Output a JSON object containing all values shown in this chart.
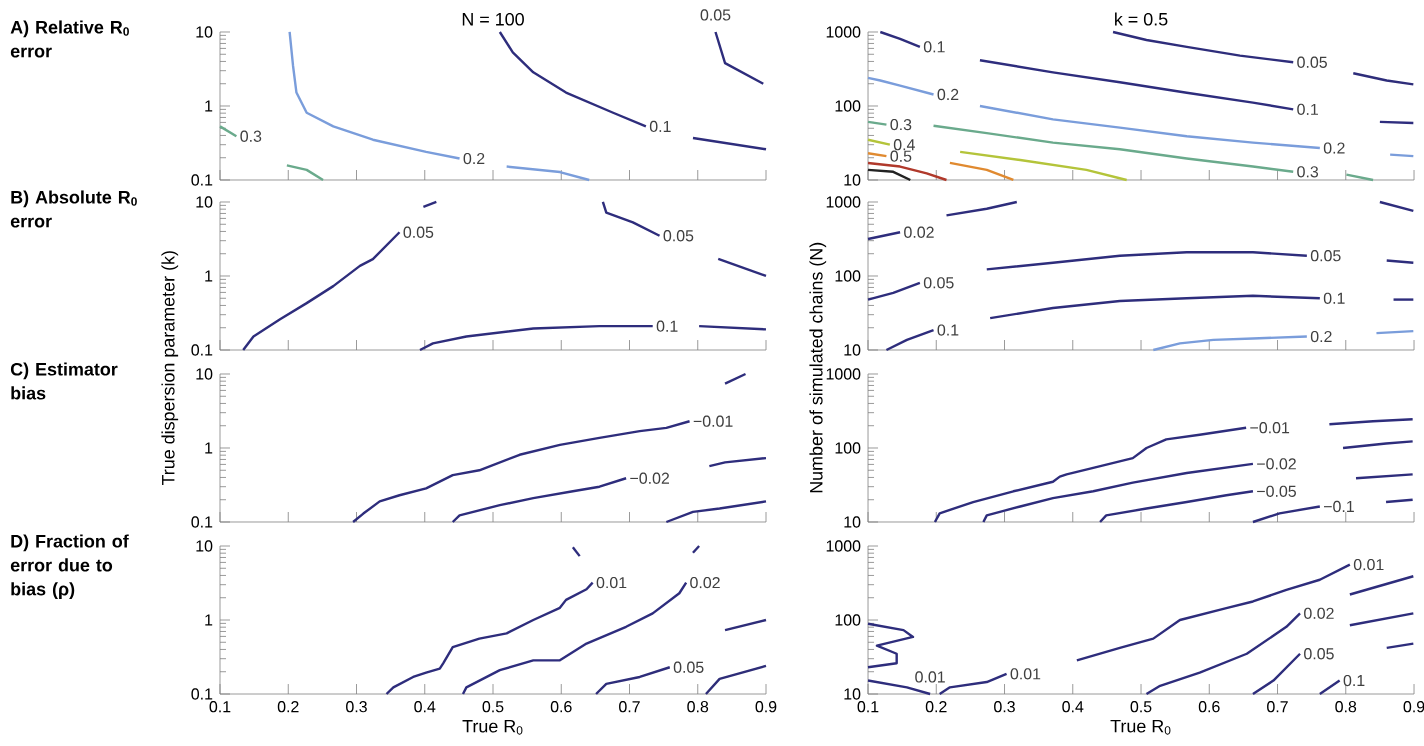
{
  "chart_data": [
    {
      "type": "line",
      "title": "A) Relative R$_{0}$ error",
      "xlim": [
        0.1,
        0.9
      ],
      "ylim": [
        0.1,
        10
      ],
      "xticks": [
        0.1,
        0.2,
        0.3,
        0.4,
        0.5,
        0.6,
        0.7,
        0.8,
        0.9
      ],
      "yticks": [
        0.1,
        1,
        10
      ],
      "log": "y",
      "tick_labels": "y",
      "series": [
        {
          "name": "0.3",
          "color": "#6aaa8c",
          "x": [
            0.1,
            0.124
          ],
          "values": [
            0.53,
            0.39
          ]
        },
        {
          "color": "#6aaa8c",
          "x": [
            0.198,
            0.227,
            0.251
          ],
          "values": [
            0.158,
            0.137,
            0.1
          ]
        },
        {
          "name": "0.2",
          "color": "#7a9ddb",
          "x": [
            0.202,
            0.207,
            0.212,
            0.227,
            0.266,
            0.324,
            0.402,
            0.451
          ],
          "values": [
            10,
            3.5,
            1.52,
            0.81,
            0.53,
            0.35,
            0.24,
            0.195
          ]
        },
        {
          "color": "#7a9ddb",
          "x": [
            0.52,
            0.598,
            0.641
          ],
          "values": [
            0.152,
            0.128,
            0.1
          ]
        },
        {
          "name": "0.1",
          "color": "#2e2d7c",
          "x": [
            0.51,
            0.529,
            0.559,
            0.607,
            0.676,
            0.724
          ],
          "values": [
            10,
            5.3,
            2.85,
            1.52,
            0.81,
            0.53
          ]
        },
        {
          "color": "#2e2d7c",
          "x": [
            0.793,
            0.9
          ],
          "values": [
            0.37,
            0.26
          ]
        },
        {
          "name": "0.05",
          "color": "#2e2d7c",
          "x": [
            0.896,
            0.84,
            0.826
          ],
          "values": [
            2.0,
            3.8,
            10
          ]
        }
      ],
      "annotations": [
        "N = 100"
      ]
    },
    {
      "type": "line",
      "xlim": [
        0.1,
        0.9
      ],
      "ylim": [
        10,
        1000
      ],
      "xticks": [
        0.1,
        0.2,
        0.3,
        0.4,
        0.5,
        0.6,
        0.7,
        0.8,
        0.9
      ],
      "yticks": [
        10,
        100,
        1000
      ],
      "log": "y",
      "tick_labels": "y",
      "series": [
        {
          "name": "0.1",
          "color": "#2e2d7c",
          "x": [
            0.118,
            0.147,
            0.176
          ],
          "values": [
            1000,
            810,
            630
          ]
        },
        {
          "name": "0.1",
          "color": "#2e2d7d",
          "x": [
            0.264,
            0.371,
            0.469,
            0.567,
            0.664,
            0.723
          ],
          "values": [
            415,
            285,
            209,
            151,
            111,
            90
          ]
        },
        {
          "color": "#2e2d7e",
          "x": [
            0.85,
            0.899
          ],
          "values": [
            61,
            59
          ]
        },
        {
          "name": "0.05",
          "color": "#2e2d7b",
          "x": [
            0.459,
            0.508,
            0.567,
            0.645,
            0.723
          ],
          "values": [
            1000,
            780,
            630,
            480,
            390
          ]
        },
        {
          "color": "#2e2d7a",
          "x": [
            0.811,
            0.86,
            0.899
          ],
          "values": [
            277,
            221,
            196
          ]
        },
        {
          "name": "0.2",
          "color": "#7a9ddb",
          "x": [
            0.1,
            0.118,
            0.147,
            0.196
          ],
          "values": [
            240,
            221,
            188,
            143
          ]
        },
        {
          "name": "0.2",
          "color": "#7a9ddb",
          "x": [
            0.264,
            0.371,
            0.469,
            0.567,
            0.664,
            0.762
          ],
          "values": [
            100,
            66,
            51,
            39,
            32,
            27
          ]
        },
        {
          "color": "#7a9ddb",
          "x": [
            0.865,
            0.899
          ],
          "values": [
            22,
            21
          ]
        },
        {
          "name": "0.3",
          "color": "#6aaa8c",
          "x": [
            0.1,
            0.127
          ],
          "values": [
            61,
            56
          ]
        },
        {
          "name": "0.3",
          "color": "#6aaa8c",
          "x": [
            0.196,
            0.274,
            0.371,
            0.469,
            0.567,
            0.664,
            0.723
          ],
          "values": [
            54,
            43,
            32,
            26,
            19.5,
            15.2,
            12.9
          ]
        },
        {
          "color": "#6aaa8c",
          "x": [
            0.801,
            0.84
          ],
          "values": [
            11.8,
            10
          ]
        },
        {
          "name": "0.4",
          "color": "#b4c43a",
          "x": [
            0.1,
            0.132
          ],
          "values": [
            35,
            30
          ]
        },
        {
          "color": "#b4c43a",
          "x": [
            0.235,
            0.323,
            0.42,
            0.479
          ],
          "values": [
            24,
            18.6,
            13.7,
            10
          ]
        },
        {
          "name": "0.5",
          "color": "#e08a30",
          "x": [
            0.1,
            0.127
          ],
          "values": [
            23,
            21
          ]
        },
        {
          "color": "#e08a30",
          "x": [
            0.22,
            0.274,
            0.313
          ],
          "values": [
            17,
            13.7,
            10
          ]
        },
        {
          "color": "#b0392b",
          "x": [
            0.1,
            0.147,
            0.186,
            0.215
          ],
          "values": [
            17,
            15.2,
            12.3,
            10
          ]
        },
        {
          "color": "#222222",
          "x": [
            0.1,
            0.137,
            0.162
          ],
          "values": [
            13.7,
            12.9,
            10
          ]
        }
      ],
      "annotations": [
        "k = 0.5"
      ]
    },
    {
      "type": "line",
      "title": "B) Absolute R$_{0}$ error",
      "ylabel": "True dispersion parameter (k)",
      "xlim": [
        0.1,
        0.9
      ],
      "ylim": [
        0.1,
        10
      ],
      "xticks": [
        0.1,
        0.2,
        0.3,
        0.4,
        0.5,
        0.6,
        0.7,
        0.8,
        0.9
      ],
      "yticks": [
        0.1,
        1,
        10
      ],
      "log": "y",
      "tick_labels": "y",
      "series": [
        {
          "name": "0.05",
          "color": "#2e2d7c",
          "x": [
            0.134,
            0.149,
            0.188,
            0.227,
            0.266,
            0.305,
            0.324,
            0.363
          ],
          "values": [
            0.1,
            0.152,
            0.26,
            0.43,
            0.73,
            1.37,
            1.69,
            3.9
          ]
        },
        {
          "color": "#2e2d7c",
          "x": [
            0.398,
            0.417
          ],
          "values": [
            8.6,
            10
          ]
        },
        {
          "name": "0.05",
          "color": "#2e2d7c",
          "x": [
            0.661,
            0.666,
            0.705,
            0.744
          ],
          "values": [
            10,
            7.2,
            5.3,
            3.5
          ]
        },
        {
          "color": "#2e2d7c",
          "x": [
            0.83,
            0.9
          ],
          "values": [
            1.7,
            1.0
          ]
        },
        {
          "name": "0.1",
          "color": "#2e2d7c",
          "x": [
            0.393,
            0.412,
            0.461,
            0.559,
            0.656,
            0.734
          ],
          "values": [
            0.1,
            0.123,
            0.152,
            0.195,
            0.21,
            0.21
          ]
        },
        {
          "color": "#2e2d7c",
          "x": [
            0.802,
            0.9
          ],
          "values": [
            0.21,
            0.19
          ]
        }
      ]
    },
    {
      "type": "line",
      "ylabel": "Number of simulated chains (N)",
      "xlim": [
        0.1,
        0.9
      ],
      "ylim": [
        10,
        1000
      ],
      "xticks": [
        0.1,
        0.2,
        0.3,
        0.4,
        0.5,
        0.6,
        0.7,
        0.8,
        0.9
      ],
      "yticks": [
        10,
        100,
        1000
      ],
      "log": "y",
      "tick_labels": "y",
      "series": [
        {
          "name": "0.02",
          "color": "#2e2d7c",
          "x": [
            0.1,
            0.147
          ],
          "values": [
            316,
            390
          ]
        },
        {
          "color": "#2e2d7c",
          "x": [
            0.215,
            0.274,
            0.318
          ],
          "values": [
            660,
            810,
            1000
          ]
        },
        {
          "color": "#2e2d7c",
          "x": [
            0.85,
            0.899
          ],
          "values": [
            1000,
            760
          ]
        },
        {
          "name": "0.05",
          "color": "#2e2d7c",
          "x": [
            0.1,
            0.137,
            0.176
          ],
          "values": [
            48,
            59,
            81
          ]
        },
        {
          "name": "0.05",
          "color": "#2e2d7c",
          "x": [
            0.274,
            0.371,
            0.469,
            0.567,
            0.664,
            0.743
          ],
          "values": [
            123,
            151,
            188,
            209,
            209,
            188
          ]
        },
        {
          "color": "#2e2d7c",
          "x": [
            0.86,
            0.899
          ],
          "values": [
            162,
            151
          ]
        },
        {
          "name": "0.1",
          "color": "#2e2d7c",
          "x": [
            0.127,
            0.157,
            0.196
          ],
          "values": [
            10,
            13.7,
            18.6
          ]
        },
        {
          "name": "0.1",
          "color": "#2e2d7c",
          "x": [
            0.279,
            0.371,
            0.469,
            0.567,
            0.664,
            0.762
          ],
          "values": [
            27,
            37,
            46,
            50,
            54,
            50
          ]
        },
        {
          "color": "#2e2d7c",
          "x": [
            0.87,
            0.899
          ],
          "values": [
            48,
            48
          ]
        },
        {
          "name": "0.2",
          "color": "#7a9ddb",
          "x": [
            0.518,
            0.557,
            0.606,
            0.664,
            0.743
          ],
          "values": [
            10,
            12.3,
            13.7,
            14.3,
            15.2
          ]
        },
        {
          "color": "#7a9ddb",
          "x": [
            0.845,
            0.899
          ],
          "values": [
            16.9,
            18
          ]
        }
      ]
    },
    {
      "type": "line",
      "title": "C) Estimator bias",
      "xlim": [
        0.1,
        0.9
      ],
      "ylim": [
        0.1,
        10
      ],
      "xticks": [
        0.1,
        0.2,
        0.3,
        0.4,
        0.5,
        0.6,
        0.7,
        0.8,
        0.9
      ],
      "yticks": [
        0.1,
        1,
        10
      ],
      "log": "y",
      "tick_labels": "y",
      "series": [
        {
          "name": "−0.01",
          "color": "#2e2d7c",
          "x": [
            0.295,
            0.31,
            0.334,
            0.363,
            0.402,
            0.441,
            0.48,
            0.539,
            0.598,
            0.656,
            0.715,
            0.754,
            0.788
          ],
          "values": [
            0.1,
            0.13,
            0.19,
            0.23,
            0.285,
            0.43,
            0.5,
            0.81,
            1.1,
            1.37,
            1.69,
            1.87,
            2.3
          ]
        },
        {
          "color": "#2e2d7c",
          "x": [
            0.84,
            0.87
          ],
          "values": [
            7.4,
            10
          ]
        },
        {
          "name": "−0.02",
          "color": "#2e2d7c",
          "x": [
            0.441,
            0.451,
            0.51,
            0.559,
            0.617,
            0.656,
            0.695
          ],
          "values": [
            0.1,
            0.123,
            0.169,
            0.21,
            0.26,
            0.3,
            0.39
          ]
        },
        {
          "color": "#2e2d7c",
          "x": [
            0.817,
            0.84,
            0.9
          ],
          "values": [
            0.57,
            0.64,
            0.73
          ]
        },
        {
          "color": "#2e2d7c",
          "x": [
            0.754,
            0.793,
            0.832,
            0.9
          ],
          "values": [
            0.1,
            0.137,
            0.152,
            0.19
          ]
        }
      ]
    },
    {
      "type": "line",
      "xlim": [
        0.1,
        0.9
      ],
      "ylim": [
        10,
        1000
      ],
      "xticks": [
        0.1,
        0.2,
        0.3,
        0.4,
        0.5,
        0.6,
        0.7,
        0.8,
        0.9
      ],
      "yticks": [
        10,
        100,
        1000
      ],
      "log": "y",
      "tick_labels": "y",
      "series": [
        {
          "name": "−0.01",
          "color": "#2e2d7c",
          "x": [
            0.198,
            0.205,
            0.254,
            0.313,
            0.371,
            0.381,
            0.391,
            0.43,
            0.488,
            0.508,
            0.537,
            0.586,
            0.654
          ],
          "values": [
            10,
            13.1,
            18.6,
            26,
            35,
            41,
            44,
            54,
            73,
            100,
            131,
            151,
            188
          ]
        },
        {
          "color": "#2e2d7c",
          "x": [
            0.776,
            0.84,
            0.898
          ],
          "values": [
            209,
            230,
            245
          ]
        },
        {
          "name": "−0.02",
          "color": "#2e2d7c",
          "x": [
            0.269,
            0.274,
            0.323,
            0.371,
            0.43,
            0.488,
            0.567,
            0.664
          ],
          "values": [
            10,
            12.3,
            16.2,
            21,
            26,
            34,
            46,
            61
          ]
        },
        {
          "color": "#2e2d7c",
          "x": [
            0.796,
            0.859,
            0.898
          ],
          "values": [
            100,
            115,
            123
          ]
        },
        {
          "name": "−0.05",
          "color": "#2e2d7c",
          "x": [
            0.44,
            0.449,
            0.508,
            0.567,
            0.625,
            0.664
          ],
          "values": [
            10,
            12.3,
            15.2,
            18.6,
            23,
            26
          ]
        },
        {
          "color": "#2e2d7c",
          "x": [
            0.815,
            0.898
          ],
          "values": [
            39,
            44
          ]
        },
        {
          "name": "−0.1",
          "color": "#2e2d7c",
          "x": [
            0.664,
            0.703,
            0.762
          ],
          "values": [
            10,
            13.1,
            16.2
          ]
        },
        {
          "color": "#2e2d7c",
          "x": [
            0.859,
            0.898
          ],
          "values": [
            18.6,
            20
          ]
        }
      ]
    },
    {
      "type": "line",
      "title": "D) Fraction of error due to bias (ρ)",
      "xlabel": "True R$_{0}$",
      "xlim": [
        0.1,
        0.9
      ],
      "ylim": [
        0.1,
        10
      ],
      "xticks": [
        0.1,
        0.2,
        0.3,
        0.4,
        0.5,
        0.6,
        0.7,
        0.8,
        0.9
      ],
      "yticks": [
        0.1,
        1,
        10
      ],
      "log": "y",
      "series": [
        {
          "name": "0.01",
          "color": "#2e2d7c",
          "x": [
            0.344,
            0.354,
            0.383,
            0.402,
            0.422,
            0.427,
            0.441,
            0.48,
            0.52,
            0.559,
            0.598,
            0.607,
            0.637,
            0.646
          ],
          "values": [
            0.1,
            0.123,
            0.17,
            0.195,
            0.22,
            0.26,
            0.43,
            0.56,
            0.66,
            1.0,
            1.46,
            1.87,
            2.6,
            3.2
          ]
        },
        {
          "color": "#2e2d7d",
          "x": [
            0.617,
            0.627
          ],
          "values": [
            9.6,
            7.3
          ]
        },
        {
          "name": "0.02",
          "color": "#2e2d7e",
          "x": [
            0.456,
            0.461,
            0.51,
            0.559,
            0.598,
            0.637,
            0.695,
            0.734,
            0.773,
            0.783
          ],
          "values": [
            0.1,
            0.123,
            0.21,
            0.285,
            0.285,
            0.48,
            0.81,
            1.23,
            2.3,
            3.2
          ]
        },
        {
          "color": "#2e2d7b",
          "x": [
            0.793,
            0.802
          ],
          "values": [
            8.1,
            10
          ]
        },
        {
          "name": "0.05",
          "color": "#2e2d7a",
          "x": [
            0.651,
            0.666,
            0.715,
            0.759
          ],
          "values": [
            0.1,
            0.137,
            0.17,
            0.23
          ]
        },
        {
          "color": "#2e2d79",
          "x": [
            0.84,
            0.9
          ],
          "values": [
            0.73,
            1.0
          ]
        },
        {
          "color": "#2e2d78",
          "x": [
            0.812,
            0.832,
            0.9
          ],
          "values": [
            0.1,
            0.16,
            0.24
          ]
        }
      ]
    },
    {
      "type": "line",
      "xlabel": "True R$_{0}$",
      "xlim": [
        0.1,
        0.9
      ],
      "ylim": [
        10,
        1000
      ],
      "xticks": [
        0.1,
        0.2,
        0.3,
        0.4,
        0.5,
        0.6,
        0.7,
        0.8,
        0.9
      ],
      "yticks": [
        10,
        100,
        1000
      ],
      "log": "y",
      "series": [
        {
          "color": "#2e2d7c",
          "x": [
            0.1,
            0.152,
            0.166,
            0.113,
            0.142,
            0.142,
            0.1
          ],
          "values": [
            89,
            73,
            59,
            45,
            35,
            26,
            23
          ]
        },
        {
          "name": "0.01",
          "color": "#2e2d7c",
          "x": [
            0.1,
            0.157,
            0.191
          ],
          "values": [
            15.2,
            12.3,
            10
          ]
        },
        {
          "name": "0.01",
          "color": "#2e2d7c",
          "x": [
            0.205,
            0.22,
            0.274,
            0.303
          ],
          "values": [
            10,
            12.3,
            14.5,
            18.7
          ]
        },
        {
          "name": "0.01",
          "color": "#2e2d7c",
          "x": [
            0.406,
            0.469,
            0.518,
            0.557,
            0.625,
            0.664,
            0.713,
            0.762,
            0.806
          ],
          "values": [
            28.5,
            42,
            56,
            100,
            145,
            178,
            255,
            350,
            560
          ]
        },
        {
          "name": "0.02",
          "color": "#2e2d7c",
          "x": [
            0.508,
            0.528,
            0.586,
            0.655,
            0.713,
            0.733
          ],
          "values": [
            10,
            12.9,
            19.5,
            35,
            81,
            123
          ]
        },
        {
          "color": "#2e2d7c",
          "x": [
            0.806,
            0.899
          ],
          "values": [
            221,
            390
          ]
        },
        {
          "name": "0.05",
          "color": "#2e2d7c",
          "x": [
            0.664,
            0.694,
            0.733
          ],
          "values": [
            10,
            15.2,
            35
          ]
        },
        {
          "color": "#2e2d7c",
          "x": [
            0.806,
            0.899
          ],
          "values": [
            85,
            123
          ]
        },
        {
          "name": "0.1",
          "color": "#2e2d7c",
          "x": [
            0.762,
            0.791
          ],
          "values": [
            10,
            15.2
          ]
        },
        {
          "color": "#2e2d7c",
          "x": [
            0.86,
            0.899
          ],
          "values": [
            42,
            48
          ]
        }
      ]
    }
  ]
}
